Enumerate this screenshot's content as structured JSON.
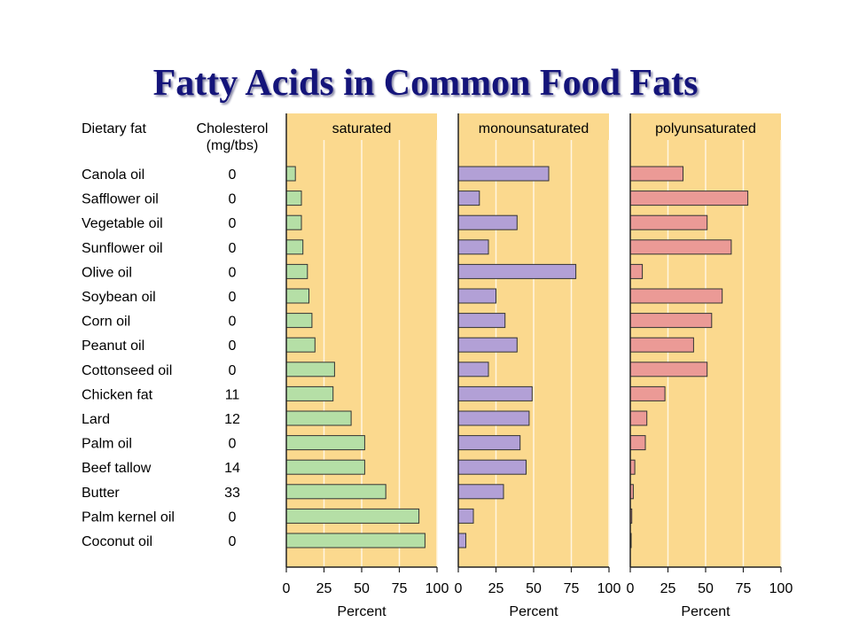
{
  "page": {
    "title": "Fatty Acids in Common Food Fats"
  },
  "table": {
    "col_fat_header": "Dietary fat",
    "col_chol_header_line1": "Cholesterol",
    "col_chol_header_line2": "(mg/tbs)"
  },
  "colors": {
    "panel_bg": "#fbd98e",
    "saturated": "#b5dfa6",
    "monounsaturated": "#b2a0d6",
    "polyunsaturated": "#eb9a96",
    "bar_stroke": "#333333",
    "grid": "#fff6e2"
  },
  "chart_data": {
    "type": "bar",
    "orientation": "horizontal",
    "title": "Fatty Acids in Common Food Fats",
    "categories": [
      "Canola oil",
      "Safflower oil",
      "Vegetable oil",
      "Sunflower oil",
      "Olive oil",
      "Soybean oil",
      "Corn oil",
      "Peanut oil",
      "Cottonseed oil",
      "Chicken fat",
      "Lard",
      "Palm oil",
      "Beef tallow",
      "Butter",
      "Palm kernel oil",
      "Coconut oil"
    ],
    "cholesterol": [
      "0",
      "0",
      "0",
      "0",
      "0",
      "0",
      "0",
      "0",
      "0",
      "11",
      "12",
      "0",
      "14",
      "33",
      "0",
      "0"
    ],
    "xlim": [
      0,
      100
    ],
    "xticks": [
      "0",
      "25",
      "50",
      "75",
      "100"
    ],
    "xlabel": "Percent",
    "grid": true,
    "series": [
      {
        "name": "saturated",
        "values": [
          6,
          10,
          10,
          11,
          14,
          15,
          17,
          19,
          32,
          31,
          43,
          52,
          52,
          66,
          88,
          92
        ]
      },
      {
        "name": "monounsaturated",
        "values": [
          60,
          14,
          39,
          20,
          78,
          25,
          31,
          39,
          20,
          49,
          47,
          41,
          45,
          30,
          10,
          5
        ]
      },
      {
        "name": "polyunsaturated",
        "values": [
          35,
          78,
          51,
          67,
          8,
          61,
          54,
          42,
          51,
          23,
          11,
          10,
          3,
          2,
          1,
          0.5
        ]
      }
    ]
  }
}
